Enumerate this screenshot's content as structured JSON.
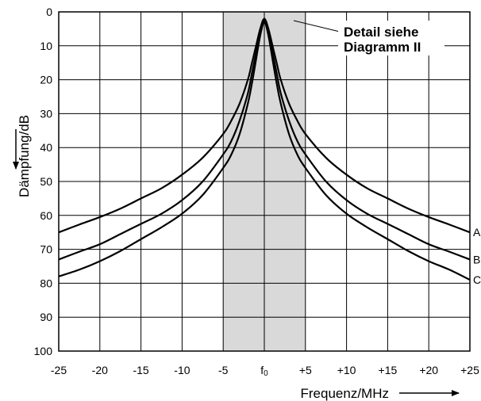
{
  "chart_data": {
    "type": "line",
    "xlabel": "Frequenz/MHz",
    "ylabel": "Dämpfung/dB",
    "x_ticks": [
      "-25",
      "-20",
      "-15",
      "-10",
      "-5",
      "f0",
      "+5",
      "+10",
      "+15",
      "+20",
      "+25"
    ],
    "x_tick_values": [
      -25,
      -20,
      -15,
      -10,
      -5,
      0,
      5,
      10,
      15,
      20,
      25
    ],
    "y_ticks": [
      "0",
      "10",
      "20",
      "30",
      "40",
      "50",
      "60",
      "70",
      "80",
      "90",
      "100"
    ],
    "xlim": [
      -25,
      25
    ],
    "ylim": [
      0,
      100
    ],
    "y_inverted": true,
    "grid": true,
    "shaded_band": [
      -5,
      5
    ],
    "annotation": {
      "line1": "Detail siehe",
      "line2": "Diagramm II"
    },
    "series": [
      {
        "name": "A",
        "x": [
          -25,
          -22.5,
          -20,
          -17.5,
          -15,
          -12.5,
          -10,
          -7.5,
          -5,
          -4,
          -3,
          -2,
          -1.5,
          -1,
          -0.5,
          0,
          0.5,
          1,
          1.5,
          2,
          3,
          4,
          5,
          7.5,
          10,
          12.5,
          15,
          17.5,
          20,
          22.5,
          25
        ],
        "y": [
          65,
          62.7,
          60.5,
          58,
          55,
          52,
          48,
          43,
          36,
          32,
          27,
          20,
          15,
          10,
          5,
          2,
          5,
          10,
          15,
          20,
          27,
          32,
          36,
          43,
          48,
          52,
          55,
          58,
          60.5,
          62.7,
          65
        ]
      },
      {
        "name": "B",
        "x": [
          -25,
          -22.5,
          -20,
          -17.5,
          -15,
          -12.5,
          -10,
          -7.5,
          -5,
          -4,
          -3,
          -2,
          -1.5,
          -1,
          -0.5,
          0,
          0.5,
          1,
          1.5,
          2,
          3,
          4,
          5,
          7.5,
          10,
          12.5,
          15,
          17.5,
          20,
          22.5,
          25
        ],
        "y": [
          73,
          70.7,
          68.5,
          65.5,
          62.5,
          59.5,
          55.5,
          50,
          42,
          38,
          32,
          24,
          18,
          12,
          6,
          2.5,
          6,
          12,
          18,
          24,
          32,
          38,
          42,
          50,
          55.5,
          59.5,
          62.5,
          65.5,
          68.5,
          70.7,
          73
        ]
      },
      {
        "name": "C",
        "x": [
          -25,
          -22.5,
          -20,
          -17.5,
          -15,
          -12.5,
          -10,
          -7.5,
          -5,
          -4,
          -3,
          -2,
          -1.5,
          -1,
          -0.5,
          0,
          0.5,
          1,
          1.5,
          2,
          3,
          4,
          5,
          7.5,
          10,
          12.5,
          15,
          17.5,
          20,
          22.5,
          25
        ],
        "y": [
          78,
          76,
          73.5,
          70.5,
          67,
          63.5,
          59.5,
          54,
          46,
          42,
          36,
          27,
          21,
          14,
          7,
          3,
          7,
          14,
          21,
          27,
          36,
          42,
          46,
          54,
          59.5,
          63.5,
          67,
          70.5,
          73.5,
          76,
          79
        ]
      }
    ],
    "line_color": "#000000",
    "band_color": "#d9d9d9"
  }
}
